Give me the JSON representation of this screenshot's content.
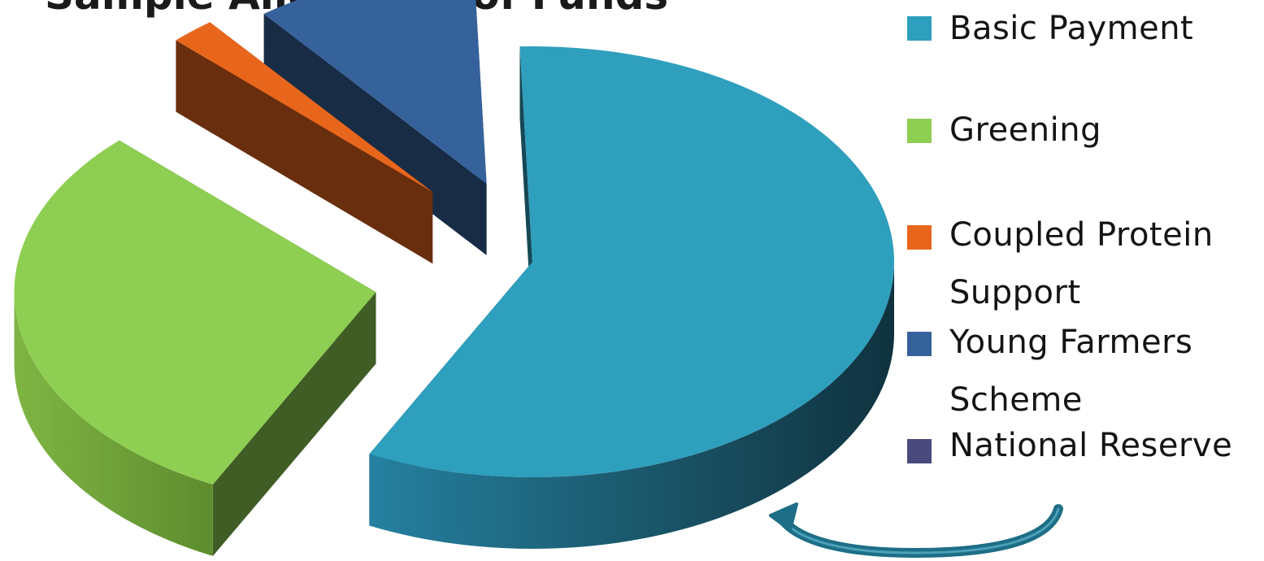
{
  "chart_data": {
    "type": "pie",
    "title": "Sample Allocation of Funds",
    "categories": [
      "Basic Payment",
      "Greening",
      "Coupled Protein Support",
      "Young Farmers Scheme",
      "National Reserve"
    ],
    "values": [
      58,
      30,
      2,
      10,
      0
    ],
    "unit": "%",
    "exploded": true,
    "three_d": true,
    "legend_position": "right",
    "colors": {
      "Basic Payment": "#2e9fbd",
      "Greening": "#8ece52",
      "Coupled Protein Support": "#e8661c",
      "Young Farmers Scheme": "#36629c",
      "National Reserve": "#4a4a7c"
    }
  },
  "legend": {
    "items": [
      {
        "label": "Basic Payment",
        "color": "#2e9fbd"
      },
      {
        "label": "Greening",
        "color": "#8ece52"
      },
      {
        "label": "Coupled Protein Support",
        "color": "#e8661c"
      },
      {
        "label": "Young Farmers Scheme",
        "color": "#36629c"
      },
      {
        "label": "National Reserve",
        "color": "#4a4a7c"
      }
    ]
  },
  "decorations": {
    "arrow": {
      "icon": "curved-arrow-icon",
      "color": "#1d6e86"
    }
  }
}
